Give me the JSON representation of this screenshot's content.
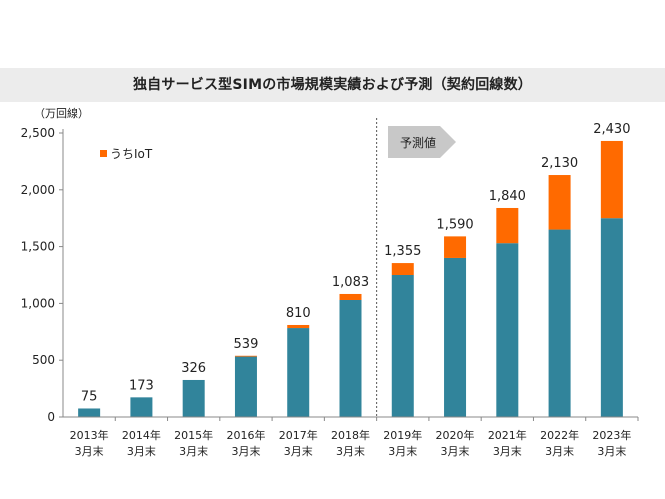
{
  "chart_data": {
    "type": "bar",
    "stacked": true,
    "title": "独自サービス型SIMの市場規模実績および予測（契約回線数）",
    "ylabel": "（万回線）",
    "ylim": [
      0,
      2500
    ],
    "yticks": [
      "0",
      "500",
      "1,000",
      "1,500",
      "2,000",
      "2,500"
    ],
    "ytick_values": [
      0,
      500,
      1000,
      1500,
      2000,
      2500
    ],
    "grid": false,
    "legend_position": "top-left",
    "categories": [
      [
        "2013年",
        "3月末"
      ],
      [
        "2014年",
        "3月末"
      ],
      [
        "2015年",
        "3月末"
      ],
      [
        "2016年",
        "3月末"
      ],
      [
        "2017年",
        "3月末"
      ],
      [
        "2018年",
        "3月末"
      ],
      [
        "2019年",
        "3月末"
      ],
      [
        "2020年",
        "3月末"
      ],
      [
        "2021年",
        "3月末"
      ],
      [
        "2022年",
        "3月末"
      ],
      [
        "2023年",
        "3月末"
      ]
    ],
    "series": [
      {
        "values": [
          75,
          173,
          326,
          532,
          783,
          1030,
          1250,
          1400,
          1530,
          1650,
          1750
        ],
        "color": "#31849b"
      },
      {
        "name": "うちIoT",
        "values": [
          0,
          0,
          0,
          7,
          27,
          53,
          105,
          190,
          310,
          480,
          680
        ],
        "color": "#ff6a00"
      }
    ],
    "totals": [
      75,
      173,
      326,
      539,
      810,
      1083,
      1355,
      1590,
      1840,
      2130,
      2430
    ],
    "total_labels": [
      "75",
      "173",
      "326",
      "539",
      "810",
      "1,083",
      "1,355",
      "1,590",
      "1,840",
      "2,130",
      "2,430"
    ],
    "forecast_label": "予測値",
    "forecast_start_index": 6
  }
}
